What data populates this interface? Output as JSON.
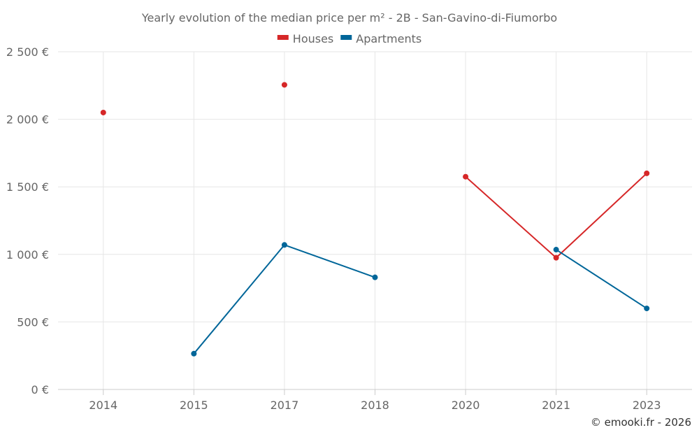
{
  "chart_data": {
    "type": "line",
    "title": "Yearly evolution of the median price per m² - 2B - San-Gavino-di-Fiumorbo",
    "xlabel": "",
    "ylabel": "",
    "categories": [
      "2014",
      "2015",
      "2017",
      "2018",
      "2020",
      "2021",
      "2023"
    ],
    "y_ticks": [
      0,
      500,
      1000,
      1500,
      2000,
      2500
    ],
    "y_tick_labels": [
      "0 €",
      "500 €",
      "1 000 €",
      "1 500 €",
      "2 000 €",
      "2 500 €"
    ],
    "ylim": [
      0,
      2500
    ],
    "grid": true,
    "legend_position": "top-center",
    "series": [
      {
        "name": "Houses",
        "color": "#d62728",
        "values": [
          2050,
          null,
          2255,
          null,
          1575,
          975,
          1600
        ]
      },
      {
        "name": "Apartments",
        "color": "#006699",
        "values": [
          null,
          265,
          1070,
          830,
          null,
          1035,
          600
        ]
      }
    ]
  },
  "credit": "© emooki.fr - 2026"
}
